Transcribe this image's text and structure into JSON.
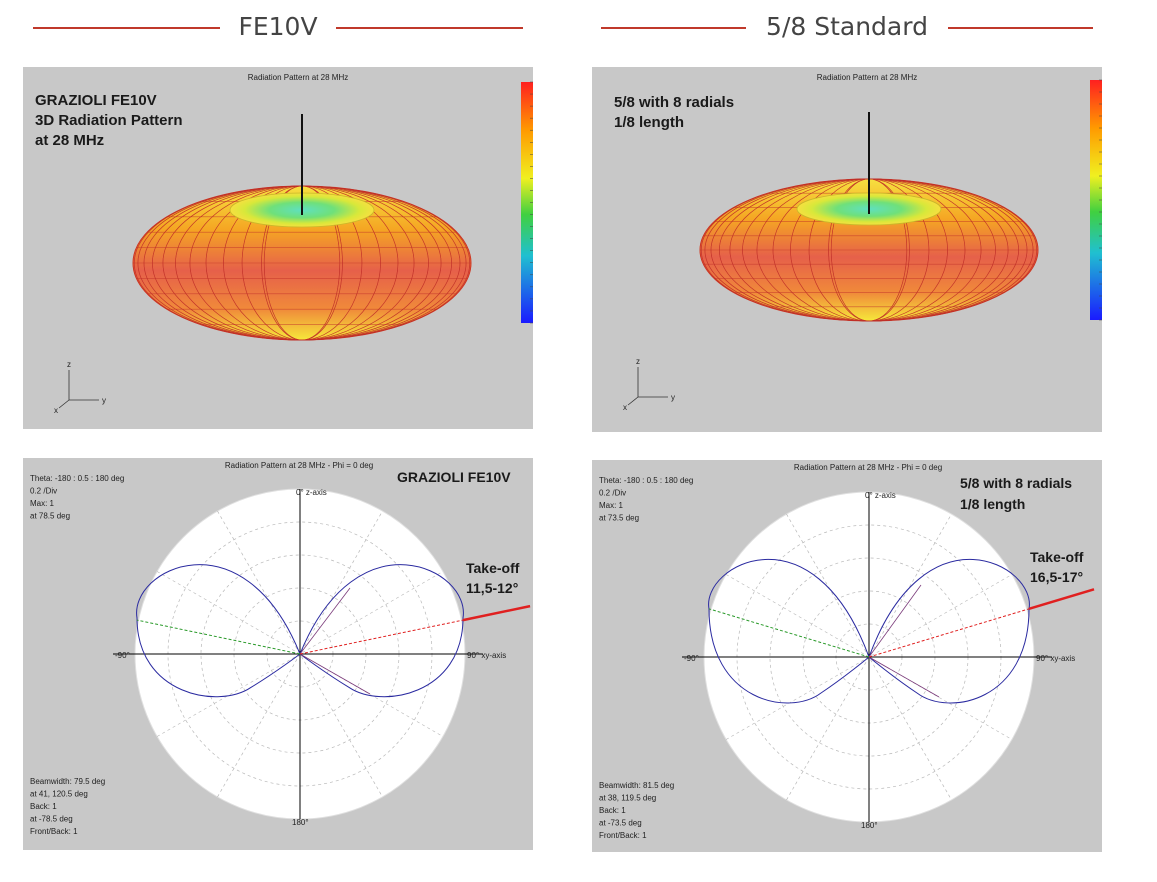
{
  "columns": [
    {
      "heading": "FE10V",
      "pattern3d": {
        "header": "Radiation Pattern at 28 MHz",
        "label_lines": [
          "GRAZIOLI  FE10V",
          "3D Radiation Pattern",
          "at 28 MHz"
        ],
        "axis_labels": {
          "z": "z",
          "x": "x",
          "y": "y"
        }
      },
      "polar": {
        "header": "Radiation Pattern at 28 MHz - Phi = 0 deg",
        "label_lines": [
          "GRAZIOLI FE10V"
        ],
        "info_top": [
          "Theta: -180 : 0.5 : 180 deg",
          "0.2 /Div",
          "Max: 1",
          "at 78.5 deg"
        ],
        "info_bottom": [
          "Beamwidth: 79.5 deg",
          "at 41, 120.5 deg",
          "Back: 1",
          "at -78.5 deg",
          "Front/Back: 1"
        ],
        "takeoff_lines": [
          "Take-off",
          "11,5-12°"
        ],
        "takeoff_deg": 11.75,
        "axis_top": "0° z-axis",
        "axis_right": "90° xy-axis",
        "axis_left": "-90°",
        "axis_bottom": "180°"
      }
    },
    {
      "heading": "5/8 Standard",
      "pattern3d": {
        "header": "Radiation Pattern at 28 MHz",
        "label_lines": [
          "5/8 with 8 radials",
          "1/8 length"
        ],
        "axis_labels": {
          "z": "z",
          "x": "x",
          "y": "y"
        }
      },
      "polar": {
        "header": "Radiation Pattern at 28 MHz - Phi = 0 deg",
        "label_lines": [
          "5/8 with 8 radials",
          "1/8 length"
        ],
        "info_top": [
          "Theta: -180 : 0.5 : 180 deg",
          "0.2 /Div",
          "Max: 1",
          "at 73.5 deg"
        ],
        "info_bottom": [
          "Beamwidth: 81.5 deg",
          "at 38, 119.5 deg",
          "Back: 1",
          "at -73.5 deg",
          "Front/Back: 1"
        ],
        "takeoff_lines": [
          "Take-off",
          "16,5-17°"
        ],
        "takeoff_deg": 16.75,
        "axis_top": "0° z-axis",
        "axis_right": "90° xy-axis",
        "axis_left": "-90°",
        "axis_bottom": "180°"
      }
    }
  ],
  "colors": {
    "accent_rule": "#c0392b",
    "panel_bg": "#c8c8c8",
    "lobe": "#2a2aa0",
    "takeoff": "#e02020",
    "rear": "#2a9a2a"
  }
}
